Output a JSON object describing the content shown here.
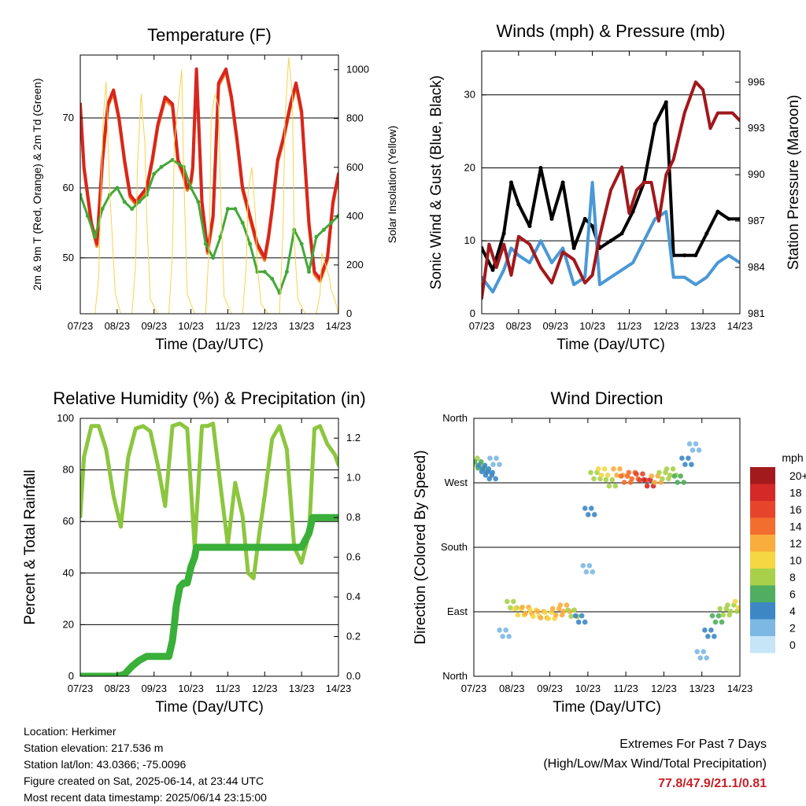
{
  "panels": {
    "temperature": {
      "title": "Temperature (F)",
      "ylabel_left": "2m & 9m T (Red, Orange) & 2m Td (Green)",
      "ylabel_right": "Solar Insolation (Yellow)",
      "xlabel": "Time (Day/UTC)"
    },
    "winds": {
      "title": "Winds (mph) & Pressure (mb)",
      "ylabel_left": "Sonic Wind & Gust (Blue, Black)",
      "ylabel_right": "Station Pressure (Maroon)",
      "xlabel": "Time (Day/UTC)"
    },
    "humidity": {
      "title": "Relative Humidity (%) & Precipitation (in)",
      "ylabel_left": "Percent & Total Rainfall",
      "xlabel": "Time (Day/UTC)"
    },
    "direction": {
      "title": "Wind Direction",
      "ylabel_left": "Direction (Colored By Speed)",
      "xlabel": "Time (Day/UTC)"
    }
  },
  "legend": {
    "title": "mph",
    "levels": [
      "20+",
      "18",
      "16",
      "14",
      "12",
      "10",
      "8",
      "6",
      "4",
      "2",
      "0"
    ],
    "colors": [
      "#a31a1c",
      "#d42927",
      "#e6452c",
      "#f26e2e",
      "#f9ad3d",
      "#f4d743",
      "#a9d04a",
      "#4fae5f",
      "#3d88c4",
      "#7db8e3",
      "#c6e5f7"
    ]
  },
  "colors": {
    "temp_2m": "#d7261e",
    "temp_9m": "#f57f20",
    "dewpoint": "#42a838",
    "solar": "#f8d34a",
    "gust": "#000000",
    "wind": "#4a98d6",
    "pressure": "#a1181c",
    "rh": "#8cc63f",
    "precip": "#3aaf3a",
    "extremes": "#c62127"
  },
  "chart_data": [
    {
      "type": "line",
      "title": "Temperature (F)",
      "xlabel": "Time (Day/UTC)",
      "ylabel": "2m & 9m T (Red, Orange) & 2m Td (Green)",
      "ylabel_right": "Solar Insolation (Yellow)",
      "x_ticks": [
        "07/23",
        "08/23",
        "09/23",
        "10/23",
        "11/23",
        "12/23",
        "13/23",
        "14/23"
      ],
      "ylim": [
        42,
        79
      ],
      "yticks": [
        50,
        60,
        70
      ],
      "ylim_right": [
        0,
        1060
      ],
      "yticks_right": [
        0,
        200,
        400,
        600,
        800,
        1000
      ],
      "series": [
        {
          "name": "2m T",
          "axis": "left",
          "x": [
            0,
            0.1,
            0.3,
            0.45,
            0.6,
            0.75,
            0.9,
            1.05,
            1.2,
            1.35,
            1.5,
            1.65,
            1.8,
            1.95,
            2.1,
            2.3,
            2.5,
            2.65,
            2.8,
            2.9,
            3.0,
            3.05,
            3.15,
            3.3,
            3.45,
            3.6,
            3.75,
            3.95,
            4.1,
            4.25,
            4.4,
            4.6,
            4.8,
            5.0,
            5.1,
            5.2,
            5.35,
            5.5,
            5.7,
            5.85,
            6.0,
            6.1,
            6.2,
            6.35,
            6.5,
            6.7,
            6.85,
            7.0
          ],
          "y": [
            72,
            63,
            55,
            52,
            64,
            72,
            74,
            70,
            64,
            59,
            58,
            59,
            60,
            64,
            69,
            73,
            72,
            64,
            62,
            60,
            61,
            63,
            77,
            58,
            51,
            56,
            75,
            77,
            73,
            67,
            60,
            56,
            52,
            50,
            53,
            57,
            64,
            67,
            72,
            75,
            71,
            63,
            55,
            48,
            47,
            50,
            58,
            62
          ]
        },
        {
          "name": "Td",
          "axis": "left",
          "x": [
            0,
            0.2,
            0.4,
            0.6,
            0.8,
            1.0,
            1.2,
            1.4,
            1.6,
            1.8,
            2.0,
            2.2,
            2.5,
            2.8,
            3.0,
            3.2,
            3.4,
            3.6,
            3.8,
            4.0,
            4.2,
            4.4,
            4.6,
            4.8,
            5.0,
            5.2,
            5.4,
            5.6,
            5.8,
            6.0,
            6.2,
            6.4,
            6.6,
            6.8,
            7.0
          ],
          "y": [
            59,
            56,
            53,
            57,
            59,
            60,
            58,
            57,
            58,
            59,
            62,
            63,
            64,
            63,
            60,
            58,
            52,
            50,
            53,
            57,
            57,
            55,
            52,
            48,
            48,
            47,
            45,
            48,
            54,
            52,
            48,
            53,
            54,
            55,
            56
          ]
        },
        {
          "name": "Solar",
          "axis": "right",
          "x": [
            0,
            0.4,
            0.5,
            0.55,
            0.62,
            0.7,
            0.8,
            0.95,
            1.1,
            1.4,
            1.5,
            1.55,
            1.65,
            1.75,
            1.8,
            1.9,
            2.1,
            2.4,
            2.5,
            2.55,
            2.65,
            2.75,
            2.8,
            2.9,
            3.1,
            3.4,
            3.5,
            3.55,
            3.65,
            3.75,
            3.8,
            3.9,
            4.1,
            4.4,
            4.5,
            4.55,
            4.65,
            4.75,
            4.8,
            4.9,
            5.1,
            5.4,
            5.5,
            5.55,
            5.65,
            5.75,
            5.8,
            5.9,
            6.1,
            6.4,
            6.5,
            6.55,
            6.65,
            6.75,
            6.8,
            6.9,
            7.0
          ],
          "y": [
            0,
            0,
            150,
            450,
            800,
            950,
            500,
            80,
            0,
            0,
            200,
            600,
            900,
            700,
            400,
            60,
            0,
            0,
            250,
            700,
            850,
            1000,
            600,
            80,
            0,
            0,
            300,
            800,
            900,
            850,
            500,
            70,
            0,
            0,
            200,
            500,
            600,
            400,
            200,
            40,
            0,
            0,
            350,
            800,
            1050,
            900,
            300,
            60,
            0,
            0,
            80,
            250,
            200,
            150,
            100,
            60,
            0
          ]
        }
      ]
    },
    {
      "type": "line",
      "title": "Winds (mph) & Pressure (mb)",
      "xlabel": "Time (Day/UTC)",
      "ylabel": "Sonic Wind & Gust (Blue, Black)",
      "ylabel_right": "Station Pressure (Maroon)",
      "x_ticks": [
        "07/23",
        "08/23",
        "09/23",
        "10/23",
        "11/23",
        "12/23",
        "13/23",
        "14/23"
      ],
      "ylim": [
        0,
        36
      ],
      "yticks": [
        0,
        10,
        20,
        30
      ],
      "ylim_right": [
        981,
        998
      ],
      "yticks_right": [
        981,
        984,
        987,
        990,
        993,
        996
      ],
      "series": [
        {
          "name": "Gust",
          "axis": "left",
          "x": [
            0,
            0.3,
            0.6,
            0.8,
            1.0,
            1.3,
            1.6,
            1.9,
            2.2,
            2.5,
            2.8,
            3.0,
            3.2,
            3.5,
            3.8,
            4.1,
            4.4,
            4.7,
            5.0,
            5.2,
            5.5,
            5.8,
            6.1,
            6.4,
            6.7,
            7.0
          ],
          "y": [
            9,
            6,
            11,
            18,
            15,
            12,
            20,
            13,
            18,
            9,
            13,
            12,
            9,
            10,
            11,
            14,
            18,
            26,
            29,
            8,
            8,
            8,
            11,
            14,
            13,
            13
          ]
        },
        {
          "name": "Wind",
          "axis": "left",
          "x": [
            0,
            0.3,
            0.6,
            0.8,
            1.0,
            1.3,
            1.6,
            1.9,
            2.2,
            2.5,
            2.8,
            3.0,
            3.2,
            3.5,
            3.8,
            4.1,
            4.4,
            4.7,
            5.0,
            5.2,
            5.5,
            5.8,
            6.1,
            6.4,
            6.7,
            7.0
          ],
          "y": [
            5,
            3,
            6,
            9,
            8,
            7,
            10,
            7,
            9,
            4,
            5,
            18,
            4,
            5,
            6,
            7,
            10,
            13,
            14,
            5,
            5,
            4,
            5,
            7,
            8,
            7
          ]
        },
        {
          "name": "Pressure",
          "axis": "right",
          "x": [
            0,
            0.2,
            0.4,
            0.6,
            0.8,
            1.0,
            1.3,
            1.6,
            1.9,
            2.2,
            2.5,
            2.8,
            3.0,
            3.2,
            3.5,
            3.8,
            4.0,
            4.2,
            4.4,
            4.6,
            4.8,
            5.0,
            5.2,
            5.5,
            5.8,
            6.0,
            6.2,
            6.4,
            6.6,
            6.8,
            7.0
          ],
          "y": [
            982,
            985.5,
            984,
            985.5,
            983.5,
            986,
            985.5,
            984,
            983,
            985,
            984.5,
            983,
            983.5,
            986,
            989,
            990.5,
            987.5,
            989,
            989.5,
            989.5,
            987,
            990,
            991,
            994,
            996,
            995.5,
            993,
            994,
            994,
            994,
            993.5
          ]
        }
      ]
    },
    {
      "type": "line",
      "title": "Relative Humidity (%) & Precipitation (in)",
      "xlabel": "Time (Day/UTC)",
      "ylabel": "Percent & Total Rainfall",
      "x_ticks": [
        "07/23",
        "08/23",
        "09/23",
        "10/23",
        "11/23",
        "12/23",
        "13/23",
        "14/23"
      ],
      "ylim": [
        0,
        100
      ],
      "yticks": [
        0,
        20,
        40,
        60,
        80,
        100
      ],
      "ylim_right": [
        0,
        1.3
      ],
      "yticks_right": [
        0.0,
        0.2,
        0.4,
        0.6,
        0.8,
        1.0,
        1.2
      ],
      "series": [
        {
          "name": "RH",
          "axis": "left",
          "x": [
            0,
            0.1,
            0.3,
            0.5,
            0.7,
            0.9,
            1.1,
            1.3,
            1.5,
            1.7,
            1.9,
            2.1,
            2.3,
            2.5,
            2.7,
            2.9,
            3.1,
            3.3,
            3.45,
            3.6,
            3.8,
            4.0,
            4.2,
            4.4,
            4.55,
            4.7,
            4.85,
            5.0,
            5.2,
            5.4,
            5.6,
            5.8,
            6.0,
            6.2,
            6.35,
            6.5,
            6.7,
            6.9,
            7.0
          ],
          "y": [
            62,
            85,
            97,
            97,
            88,
            70,
            58,
            85,
            96,
            97,
            95,
            82,
            66,
            97,
            98,
            96,
            50,
            97,
            97,
            98,
            74,
            51,
            75,
            62,
            40,
            38,
            55,
            70,
            92,
            97,
            88,
            50,
            44,
            55,
            96,
            97,
            90,
            86,
            82
          ]
        },
        {
          "name": "Precipitation",
          "axis": "right",
          "x": [
            0,
            0.5,
            1.0,
            1.2,
            1.4,
            1.6,
            1.8,
            2.0,
            2.2,
            2.4,
            2.5,
            2.55,
            2.6,
            2.7,
            2.8,
            2.9,
            3.0,
            3.1,
            3.15,
            3.2,
            3.5,
            4.0,
            4.5,
            5.0,
            5.5,
            6.0,
            6.2,
            6.3,
            6.5,
            7.0
          ],
          "y": [
            0,
            0,
            0,
            0.01,
            0.05,
            0.08,
            0.1,
            0.1,
            0.1,
            0.1,
            0.18,
            0.26,
            0.35,
            0.45,
            0.47,
            0.47,
            0.55,
            0.6,
            0.65,
            0.65,
            0.65,
            0.65,
            0.65,
            0.65,
            0.65,
            0.65,
            0.72,
            0.8,
            0.8,
            0.8
          ]
        }
      ]
    },
    {
      "type": "scatter",
      "title": "Wind Direction",
      "xlabel": "Time (Day/UTC)",
      "ylabel": "Direction (Colored By Speed)",
      "x_ticks": [
        "07/23",
        "08/23",
        "09/23",
        "10/23",
        "11/23",
        "12/23",
        "13/23",
        "14/23"
      ],
      "y_ticks": [
        "North",
        "East",
        "South",
        "West",
        "North"
      ],
      "ylim": [
        0,
        360
      ],
      "colorbar_title": "mph",
      "series": [
        {
          "name": "Direction",
          "x": [
            0.05,
            0.15,
            0.25,
            0.35,
            0.45,
            0.55,
            0.8,
            1.0,
            1.2,
            1.4,
            1.6,
            1.8,
            2.0,
            2.2,
            2.4,
            2.6,
            2.8,
            3.0,
            3.05,
            3.2,
            3.4,
            3.6,
            3.8,
            4.0,
            4.2,
            4.4,
            4.6,
            4.8,
            5.0,
            5.2,
            5.4,
            5.6,
            5.8,
            6.0,
            6.2,
            6.4,
            6.6,
            6.8,
            7.0
          ],
          "y": [
            300,
            295,
            290,
            285,
            280,
            300,
            60,
            100,
            90,
            92,
            88,
            86,
            85,
            90,
            95,
            88,
            80,
            150,
            230,
            280,
            285,
            270,
            285,
            275,
            280,
            278,
            270,
            275,
            280,
            285,
            275,
            300,
            320,
            30,
            60,
            80,
            90,
            95,
            100
          ],
          "speed": [
            8,
            6,
            5,
            4,
            5,
            3,
            2,
            9,
            10,
            12,
            11,
            13,
            10,
            12,
            13,
            9,
            4,
            3,
            5,
            8,
            10,
            9,
            12,
            14,
            15,
            16,
            18,
            12,
            8,
            9,
            6,
            4,
            3,
            2,
            4,
            6,
            8,
            9,
            10
          ]
        }
      ]
    }
  ],
  "footer": {
    "location": "Location: Herkimer",
    "elevation": "Station elevation: 217.536 m",
    "latlon": "Station lat/lon: 43.0366; -75.0096",
    "created": "Figure created on Sat, 2025-06-14, at 23:44 UTC",
    "recent": "Most recent data timestamp: 2025/06/14 23:15:00"
  },
  "extremes": {
    "title": "Extremes For Past 7 Days",
    "subtitle": "(High/Low/Max Wind/Total Precipitation)",
    "values": "77.8/47.9/21.1/0.81"
  }
}
